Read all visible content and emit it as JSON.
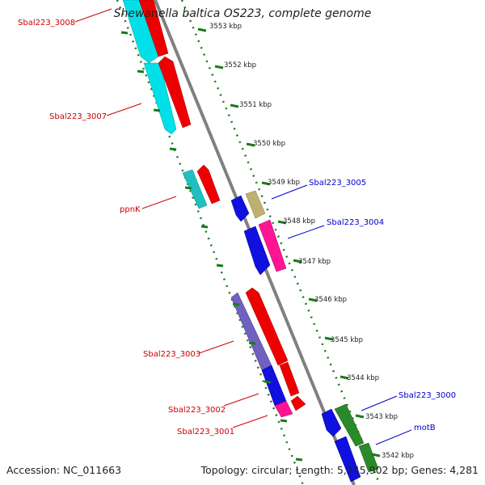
{
  "title": "Shewanella baltica OS223, complete genome",
  "footer": {
    "accession": "Accession: NC_011663",
    "summary": "Topology: circular; Length: 5,145,902 bp; Genes: 4,281"
  },
  "scale_ticks": [
    "3553 kbp",
    "3552 kbp",
    "3551 kbp",
    "3550 kbp",
    "3549 kbp",
    "3548 kbp",
    "3547 kbp",
    "3546 kbp",
    "3545 kbp",
    "3544 kbp",
    "3543 kbp",
    "3542 kbp"
  ],
  "gene_labels_left": [
    "Sbal223_3008",
    "Sbal223_3007",
    "ppnK",
    "Sbal223_3003",
    "Sbal223_3002",
    "Sbal223_3001"
  ],
  "gene_labels_right": [
    "Sbal223_3005",
    "Sbal223_3004",
    "Sbal223_3000",
    "motB"
  ],
  "colors": {
    "left_label": "#cc0000",
    "right_label": "#0000cc",
    "tick": "#1a7a1a",
    "backbone": "#808080",
    "cyan": "#00e0e8",
    "red": "#ee0000",
    "blue": "#1010e0",
    "magenta": "#ff1493",
    "olive": "#c0b070",
    "purple": "#7060c0",
    "green": "#2a8a2a",
    "teal": "#20c0c0"
  }
}
